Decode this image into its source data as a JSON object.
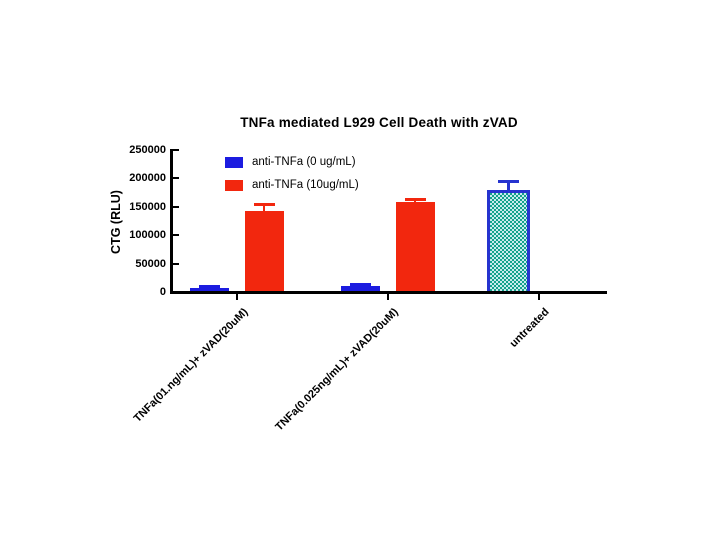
{
  "chart_data": {
    "type": "bar",
    "title": "TNFa mediated L929 Cell Death with zVAD",
    "xlabel": "",
    "ylabel": "CTG (RLU)",
    "ylim": [
      0,
      250000
    ],
    "ytick_step": 50000,
    "yticks": [
      {
        "value": 0,
        "label": "0"
      },
      {
        "value": 50000,
        "label": "50000"
      },
      {
        "value": 100000,
        "label": "100000"
      },
      {
        "value": 150000,
        "label": "150000"
      },
      {
        "value": 200000,
        "label": "200000"
      },
      {
        "value": 250000,
        "label": "250000"
      }
    ],
    "grid": false,
    "legend_position": "top-left-inside",
    "error_bars": "upper only, with caps",
    "categories": [
      "TNFa(01.ng/mL)+ zVAD(20uM)",
      "TNFa(0.025ng/mL)+ zVAD(20uM)",
      "untreated"
    ],
    "series": [
      {
        "name": "anti-TNFa (0 ug/mL)",
        "color": "#1c1ce0",
        "error_color": "#1c1ce0",
        "values": [
          6500,
          10500,
          null
        ],
        "errors_plus": [
          3500,
          3500,
          null
        ]
      },
      {
        "name": "anti-TNFa (10ug/mL)",
        "color": "#f2270e",
        "error_color": "#f2270e",
        "values": [
          142500,
          158000,
          null
        ],
        "errors_plus": [
          12000,
          5000,
          null
        ]
      },
      {
        "name": "untreated",
        "color": "#14a18c",
        "fill_style": "checkerboard",
        "fill_color2": "#c9ebee",
        "border_color": "#2633cf",
        "error_color": "#2633cf",
        "values": [
          null,
          null,
          180000
        ],
        "errors_plus": [
          null,
          null,
          15000
        ]
      }
    ]
  },
  "legend": {
    "items": [
      {
        "label": "anti-TNFa (0 ug/mL)",
        "color": "#1c1ce0"
      },
      {
        "label": "anti-TNFa (10ug/mL)",
        "color": "#f2270e"
      }
    ]
  },
  "colors": {
    "background": "#ffffff",
    "axis": "#000000",
    "blue_series": "#1c1ce0",
    "red_series": "#f2270e",
    "teal_fill": "#14a18c",
    "teal_checker": "#c9ebee",
    "teal_border": "#2633cf"
  }
}
